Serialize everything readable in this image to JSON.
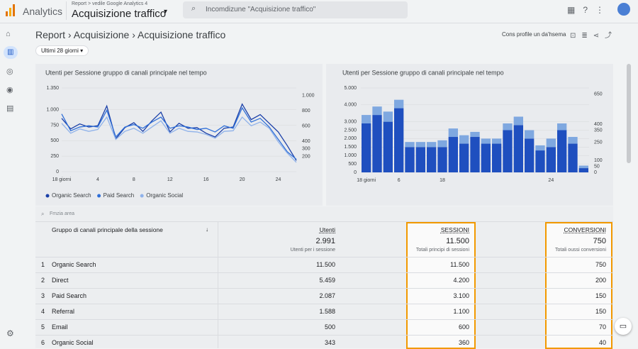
{
  "header": {
    "app": "Analytics",
    "crumb": "Report > vedile Google Analytics 4",
    "property": "Acquisizione traffico",
    "search": "Incomdizune \"Acquisizione traffico\""
  },
  "page": {
    "breadcrumb": [
      "Report",
      "Acquisizione",
      "Acquisizione traffico"
    ],
    "date_range": "Ultimi 28 giorni",
    "action": "Cons profile un da'hsema"
  },
  "chart_data": [
    {
      "type": "line",
      "title": "Utenti per Sessione gruppo di canali principale nel tempo",
      "categories": [
        "18 giorni",
        null,
        null,
        null,
        "4",
        null,
        null,
        null,
        "8",
        null,
        null,
        null,
        "12",
        null,
        null,
        null,
        "16",
        null,
        null,
        null,
        "20",
        null,
        null,
        null,
        "24",
        null,
        null
      ],
      "series": [
        {
          "name": "Organic Search",
          "color": "#1a3fa8",
          "values": [
            860,
            690,
            770,
            720,
            740,
            1060,
            530,
            710,
            790,
            650,
            820,
            960,
            640,
            780,
            700,
            710,
            620,
            560,
            700,
            720,
            1090,
            840,
            920,
            780,
            640,
            420,
            180
          ]
        },
        {
          "name": "Paid Search",
          "color": "#2f6fd8",
          "values": [
            930,
            660,
            720,
            740,
            720,
            990,
            560,
            720,
            760,
            700,
            800,
            880,
            700,
            740,
            720,
            680,
            700,
            640,
            740,
            700,
            1030,
            800,
            860,
            720,
            520,
            320,
            200
          ]
        },
        {
          "name": "Organic Social",
          "color": "#8fb2ea",
          "values": [
            780,
            620,
            690,
            650,
            680,
            880,
            520,
            650,
            700,
            620,
            720,
            820,
            620,
            700,
            650,
            640,
            600,
            540,
            650,
            660,
            880,
            740,
            800,
            700,
            480,
            300,
            150
          ]
        }
      ],
      "ylim": [
        0,
        1350
      ],
      "yticks": [
        0,
        250,
        500,
        750,
        {
          "value": 1000,
          "label": "1.000"
        },
        {
          "value": 1350,
          "label": "1.350"
        }
      ],
      "y2lim": [
        0,
        1100
      ],
      "y2ticks": [
        200,
        300,
        400,
        600,
        800,
        {
          "value": 1000,
          "label": "1.000"
        }
      ]
    },
    {
      "type": "stacked-bar",
      "title": "Utenti per Sessione gruppo di canali principale nel tempo",
      "categories": [
        "18 giorni",
        null,
        null,
        "6",
        null,
        null,
        null,
        "18",
        null,
        null,
        null,
        null,
        null,
        null,
        null,
        null,
        null,
        "24",
        null,
        null,
        null
      ],
      "series": [
        {
          "color": "#1f4fbf",
          "values": [
            2900,
            3400,
            3000,
            3800,
            1500,
            1500,
            1500,
            1500,
            2100,
            1700,
            2100,
            1700,
            1700,
            2500,
            2800,
            2000,
            1300,
            1500,
            2500,
            1700,
            250
          ]
        },
        {
          "color": "#7fa8e0",
          "values": [
            500,
            500,
            600,
            500,
            300,
            300,
            300,
            400,
            500,
            500,
            300,
            300,
            300,
            400,
            500,
            500,
            300,
            500,
            400,
            400,
            150
          ]
        }
      ],
      "ylim": [
        0,
        5000
      ],
      "yticks": [
        0,
        500,
        {
          "value": 1000,
          "label": "1.000"
        },
        {
          "value": 1500,
          "label": "1.500"
        },
        {
          "value": 2000,
          "label": "2.000"
        },
        {
          "value": 2500,
          "label": "2.500"
        },
        {
          "value": 3000,
          "label": "3.000"
        },
        {
          "value": 4000,
          "label": "4.000"
        },
        {
          "value": 5000,
          "label": "5.000"
        }
      ],
      "y2lim": [
        0,
        700
      ],
      "y2ticks": [
        0,
        50,
        100,
        250,
        350,
        400,
        650
      ]
    }
  ],
  "table": {
    "search": "Fmzia area",
    "headers": [
      "Gruppo di canali principale della sessione",
      "Utenti",
      "SESSIONI",
      "CONVERSIONI"
    ],
    "totals": [
      {
        "value": "2.991",
        "label": "Utenti per i sessione"
      },
      {
        "value": "11.500",
        "label": "Totali principi di sessioni"
      },
      {
        "value": "750",
        "label": "Totali oussi conversioni"
      }
    ],
    "rows": [
      [
        "1",
        "Organic Search",
        "11.500",
        "11.500",
        "750"
      ],
      [
        "2",
        "Direct",
        "5.459",
        "4.200",
        "200"
      ],
      [
        "3",
        "Paid Search",
        "2.087",
        "3.100",
        "150"
      ],
      [
        "4",
        "Referral",
        "1.588",
        "1.100",
        "150"
      ],
      [
        "5",
        "Email",
        "500",
        "600",
        "70"
      ],
      [
        "6",
        "Organic Social",
        "343",
        "360",
        "40"
      ]
    ]
  }
}
